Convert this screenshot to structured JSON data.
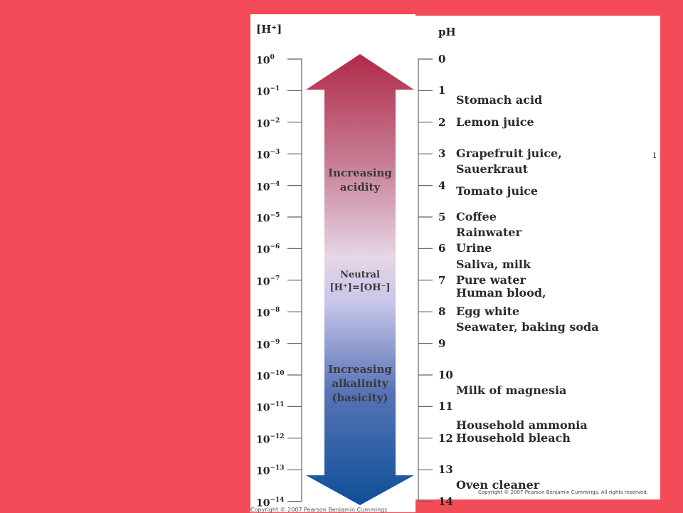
{
  "headers": {
    "h_conc": "[H⁺]",
    "ph": "pH"
  },
  "conc_scale": [
    {
      "base": "10",
      "exp": "0"
    },
    {
      "base": "10",
      "exp": "−1"
    },
    {
      "base": "10",
      "exp": "−2"
    },
    {
      "base": "10",
      "exp": "−3"
    },
    {
      "base": "10",
      "exp": "−4"
    },
    {
      "base": "10",
      "exp": "−5"
    },
    {
      "base": "10",
      "exp": "−6"
    },
    {
      "base": "10",
      "exp": "−7"
    },
    {
      "base": "10",
      "exp": "−8"
    },
    {
      "base": "10",
      "exp": "−9"
    },
    {
      "base": "10",
      "exp": "−10"
    },
    {
      "base": "10",
      "exp": "−11"
    },
    {
      "base": "10",
      "exp": "−12"
    },
    {
      "base": "10",
      "exp": "−13"
    },
    {
      "base": "10",
      "exp": "−14"
    }
  ],
  "ph_scale": [
    "0",
    "1",
    "2",
    "3",
    "4",
    "5",
    "6",
    "7",
    "8",
    "9",
    "10",
    "11",
    "12",
    "13",
    "14"
  ],
  "substances": [
    {
      "name": "Stomach acid",
      "ph": 1.3
    },
    {
      "name": "Lemon juice",
      "ph": 2
    },
    {
      "name": "Grapefruit juice,",
      "ph": 3
    },
    {
      "name": "Sauerkraut",
      "ph": 3.5
    },
    {
      "name": "Tomato juice",
      "ph": 4.2
    },
    {
      "name": "Coffee",
      "ph": 5
    },
    {
      "name": "Rainwater",
      "ph": 5.5
    },
    {
      "name": "Urine",
      "ph": 6
    },
    {
      "name": "Saliva, milk",
      "ph": 6.5
    },
    {
      "name": "Pure water",
      "ph": 7
    },
    {
      "name": "Human blood,",
      "ph": 7.4
    },
    {
      "name": "Egg white",
      "ph": 8
    },
    {
      "name": "Seawater, baking soda",
      "ph": 8.5
    },
    {
      "name": "Milk of magnesia",
      "ph": 10.5
    },
    {
      "name": "Household ammonia",
      "ph": 11.6
    },
    {
      "name": "Household bleach",
      "ph": 12
    },
    {
      "name": "Oven cleaner",
      "ph": 13.5
    }
  ],
  "arrow_labels": {
    "acid_line1": "Increasing",
    "acid_line2": "acidity",
    "neutral_line1": "Neutral",
    "neutral_line2": "[H⁺]=[OH⁻]",
    "base_line1": "Increasing",
    "base_line2": "alkalinity",
    "base_line3": "(basicity)"
  },
  "copyright": "Copyright © 2007 Pearson Benjamin Cummings. All rights reserved.",
  "cutoff_text": "Copyright © 2007 Pearson Benjamin Cummings",
  "edge_mark": "ı",
  "colors": {
    "background": "#f24b57",
    "acid": "#b02a48",
    "neutral": "#dcd9f2",
    "base": "#0d4f98"
  }
}
